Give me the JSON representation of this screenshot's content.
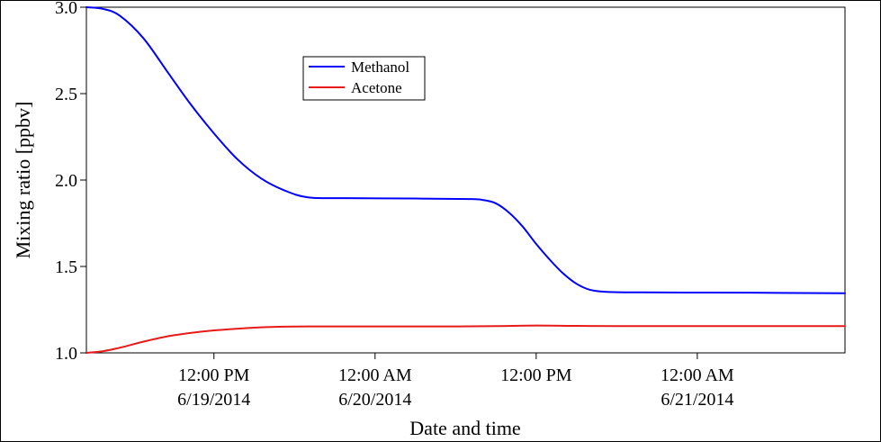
{
  "chart_data": {
    "type": "line",
    "title": "",
    "xlabel": "Date and time",
    "ylabel": "Mixing ratio [ppbv]",
    "ylim": [
      1.0,
      3.0
    ],
    "xlim": [
      "2014-06-19 02:30",
      "2014-06-21 11:00"
    ],
    "grid": false,
    "legend_position": "top-center",
    "y_ticks": [
      {
        "value": 1.0,
        "label": "1.0"
      },
      {
        "value": 1.5,
        "label": "1.5"
      },
      {
        "value": 2.0,
        "label": "2.0"
      },
      {
        "value": 2.5,
        "label": "2.5"
      },
      {
        "value": 3.0,
        "label": "3.0"
      }
    ],
    "x_ticks": [
      {
        "time": "2014-06-19 12:00",
        "line1": "12:00 PM",
        "line2": "6/19/2014"
      },
      {
        "time": "2014-06-20 00:00",
        "line1": "12:00 AM",
        "line2": "6/20/2014"
      },
      {
        "time": "2014-06-20 12:00",
        "line1": "12:00 PM",
        "line2": ""
      },
      {
        "time": "2014-06-21 00:00",
        "line1": "12:00 AM",
        "line2": "6/21/2014"
      }
    ],
    "series": [
      {
        "name": "Methanol",
        "color": "#0000ff",
        "points": [
          {
            "x": "2014-06-19 02:30",
            "y": 3.0
          },
          {
            "x": "2014-06-19 03:45",
            "y": 2.99
          },
          {
            "x": "2014-06-19 05:00",
            "y": 2.95
          },
          {
            "x": "2014-06-19 06:45",
            "y": 2.82
          },
          {
            "x": "2014-06-19 08:30",
            "y": 2.63
          },
          {
            "x": "2014-06-19 10:15",
            "y": 2.44
          },
          {
            "x": "2014-06-19 12:00",
            "y": 2.27
          },
          {
            "x": "2014-06-19 13:45",
            "y": 2.12
          },
          {
            "x": "2014-06-19 15:30",
            "y": 2.01
          },
          {
            "x": "2014-06-19 17:15",
            "y": 1.94
          },
          {
            "x": "2014-06-19 19:00",
            "y": 1.9
          },
          {
            "x": "2014-06-19 21:45",
            "y": 1.895
          },
          {
            "x": "2014-06-20 03:00",
            "y": 1.893
          },
          {
            "x": "2014-06-20 07:00",
            "y": 1.89
          },
          {
            "x": "2014-06-20 08:00",
            "y": 1.885
          },
          {
            "x": "2014-06-20 09:00",
            "y": 1.865
          },
          {
            "x": "2014-06-20 10:00",
            "y": 1.81
          },
          {
            "x": "2014-06-20 11:00",
            "y": 1.73
          },
          {
            "x": "2014-06-20 12:00",
            "y": 1.63
          },
          {
            "x": "2014-06-20 13:00",
            "y": 1.54
          },
          {
            "x": "2014-06-20 14:00",
            "y": 1.46
          },
          {
            "x": "2014-06-20 15:00",
            "y": 1.4
          },
          {
            "x": "2014-06-20 16:00",
            "y": 1.365
          },
          {
            "x": "2014-06-20 17:15",
            "y": 1.353
          },
          {
            "x": "2014-06-20 20:00",
            "y": 1.35
          },
          {
            "x": "2014-06-21 04:00",
            "y": 1.348
          },
          {
            "x": "2014-06-21 11:00",
            "y": 1.345
          }
        ]
      },
      {
        "name": "Acetone",
        "color": "#e81a1a",
        "points": [
          {
            "x": "2014-06-19 02:30",
            "y": 1.0
          },
          {
            "x": "2014-06-19 03:45",
            "y": 1.01
          },
          {
            "x": "2014-06-19 05:00",
            "y": 1.03
          },
          {
            "x": "2014-06-19 06:45",
            "y": 1.065
          },
          {
            "x": "2014-06-19 08:30",
            "y": 1.095
          },
          {
            "x": "2014-06-19 10:15",
            "y": 1.115
          },
          {
            "x": "2014-06-19 12:00",
            "y": 1.13
          },
          {
            "x": "2014-06-19 13:45",
            "y": 1.14
          },
          {
            "x": "2014-06-19 15:30",
            "y": 1.148
          },
          {
            "x": "2014-06-19 17:15",
            "y": 1.152
          },
          {
            "x": "2014-06-19 19:00",
            "y": 1.153
          },
          {
            "x": "2014-06-20 00:00",
            "y": 1.153
          },
          {
            "x": "2014-06-20 06:00",
            "y": 1.153
          },
          {
            "x": "2014-06-20 09:00",
            "y": 1.155
          },
          {
            "x": "2014-06-20 12:00",
            "y": 1.158
          },
          {
            "x": "2014-06-20 15:00",
            "y": 1.156
          },
          {
            "x": "2014-06-20 18:00",
            "y": 1.155
          },
          {
            "x": "2014-06-21 00:00",
            "y": 1.155
          },
          {
            "x": "2014-06-21 11:00",
            "y": 1.155
          }
        ]
      }
    ]
  }
}
